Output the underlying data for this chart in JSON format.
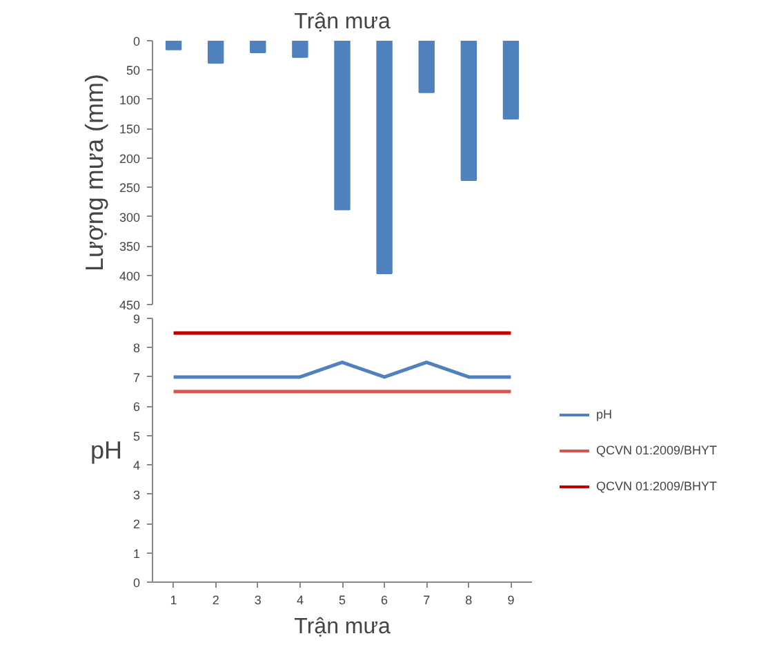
{
  "chart_data": [
    {
      "type": "bar",
      "title": "Trận mưa",
      "ylabel": "Lượng mưa (mm)",
      "categories": [
        "1",
        "2",
        "3",
        "4",
        "5",
        "6",
        "7",
        "8",
        "9"
      ],
      "values": [
        15,
        38,
        20,
        28,
        288,
        397,
        88,
        238,
        133
      ],
      "color": "#4f81bd",
      "ylim": [
        450,
        0
      ],
      "yticks": [
        0,
        50,
        100,
        150,
        200,
        250,
        300,
        350,
        400,
        450
      ],
      "tick_labels": "y",
      "grid": false
    },
    {
      "type": "line",
      "xlabel": "Trận mưa",
      "ylabel": "pH",
      "categories": [
        "1",
        "2",
        "3",
        "4",
        "5",
        "6",
        "7",
        "8",
        "9"
      ],
      "series": [
        {
          "name": "pH",
          "color": "#4f81bd",
          "values": [
            7,
            7,
            7,
            7,
            7.5,
            7,
            7.5,
            7,
            7
          ]
        },
        {
          "name": "QCVN 01:2009/BHYT",
          "color": "#d9534f",
          "values": [
            6.5,
            6.5,
            6.5,
            6.5,
            6.5,
            6.5,
            6.5,
            6.5,
            6.5
          ]
        },
        {
          "name": "QCVN 01:2009/BHYT",
          "color": "#c00000",
          "values": [
            8.5,
            8.5,
            8.5,
            8.5,
            8.5,
            8.5,
            8.5,
            8.5,
            8.5
          ]
        }
      ],
      "ylim": [
        0,
        9
      ],
      "yticks": [
        0,
        1,
        2,
        3,
        4,
        5,
        6,
        7,
        8,
        9
      ],
      "grid": false,
      "legend": "right",
      "marker": "none",
      "line_style": "solid"
    }
  ]
}
